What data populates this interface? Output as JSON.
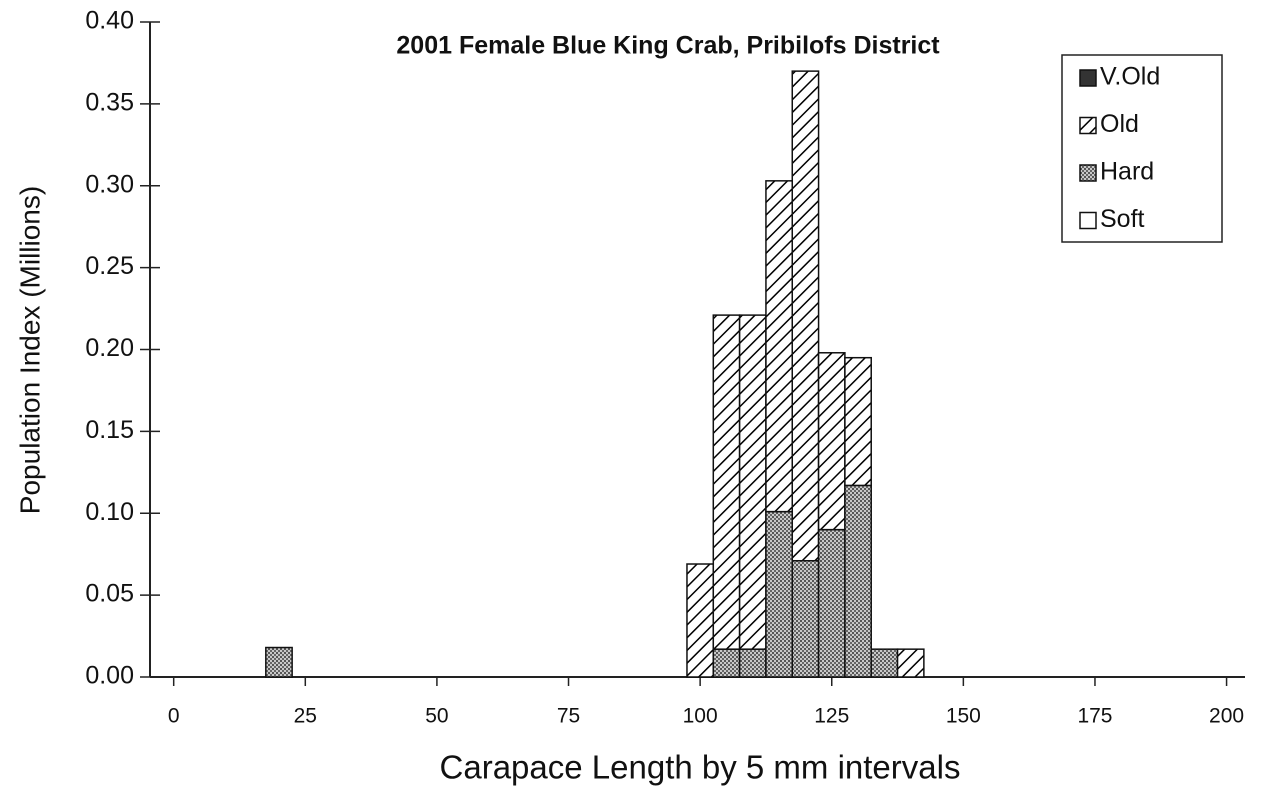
{
  "chart_data": {
    "type": "histogram",
    "title": "2001  Female Blue King Crab,  Pribilofs District",
    "x_label": "Carapace Length  by  5 mm intervals",
    "y_label": "Population Index (Millions)",
    "bins": [
      17.5,
      22.5,
      27.5,
      32.5,
      37.5,
      42.5,
      47.5,
      52.5,
      57.5,
      62.5,
      67.5,
      72.5,
      77.5,
      82.5,
      87.5,
      92.5,
      97.5,
      102.5,
      107.5,
      112.5,
      117.5,
      122.5,
      127.5,
      132.5,
      137.5,
      142.5
    ],
    "series": [
      {
        "name": "V.Old",
        "color": "#333333",
        "pattern": "solid",
        "values": [
          0,
          0,
          0,
          0,
          0,
          0,
          0,
          0,
          0,
          0,
          0,
          0,
          0,
          0,
          0,
          0,
          0,
          0,
          0,
          0,
          0,
          0,
          0,
          0,
          0
        ]
      },
      {
        "name": "Old",
        "color": "#000000",
        "pattern": "hatch",
        "values": [
          0,
          0,
          0,
          0,
          0,
          0,
          0,
          0,
          0,
          0,
          0,
          0,
          0,
          0,
          0,
          0,
          0.069,
          0.204,
          0.204,
          0.202,
          0.299,
          0.108,
          0.078,
          0,
          0.017
        ]
      },
      {
        "name": "Hard",
        "color": "#8a8a8a",
        "pattern": "dots",
        "values": [
          0.018,
          0,
          0,
          0,
          0,
          0,
          0,
          0,
          0,
          0,
          0,
          0,
          0,
          0,
          0,
          0,
          0,
          0.017,
          0.017,
          0.101,
          0.071,
          0.09,
          0.117,
          0.017,
          0
        ]
      },
      {
        "name": "Soft",
        "color": "#ffffff",
        "pattern": "solid",
        "values": [
          0,
          0,
          0,
          0,
          0,
          0,
          0,
          0,
          0,
          0,
          0,
          0,
          0,
          0,
          0,
          0,
          0,
          0,
          0,
          0,
          0,
          0,
          0,
          0,
          0
        ]
      }
    ],
    "stacked": true,
    "xlim": [
      -4.5,
      203.5
    ],
    "xticks": [
      0,
      25,
      50,
      75,
      100,
      125,
      150,
      175,
      200
    ],
    "ylim": [
      0,
      0.4
    ],
    "yticks": [
      {
        "value": 0,
        "label": "0.00"
      },
      {
        "value": 0.05,
        "label": "0.05"
      },
      {
        "value": 0.1,
        "label": "0.10"
      },
      {
        "value": 0.15,
        "label": "0.15"
      },
      {
        "value": 0.2,
        "label": "0.20"
      },
      {
        "value": 0.25,
        "label": "0.25"
      },
      {
        "value": 0.3,
        "label": "0.30"
      },
      {
        "value": 0.35,
        "label": "0.35"
      },
      {
        "value": 0.4,
        "label": "0.40"
      }
    ],
    "grid": false,
    "legend": "top-right"
  }
}
